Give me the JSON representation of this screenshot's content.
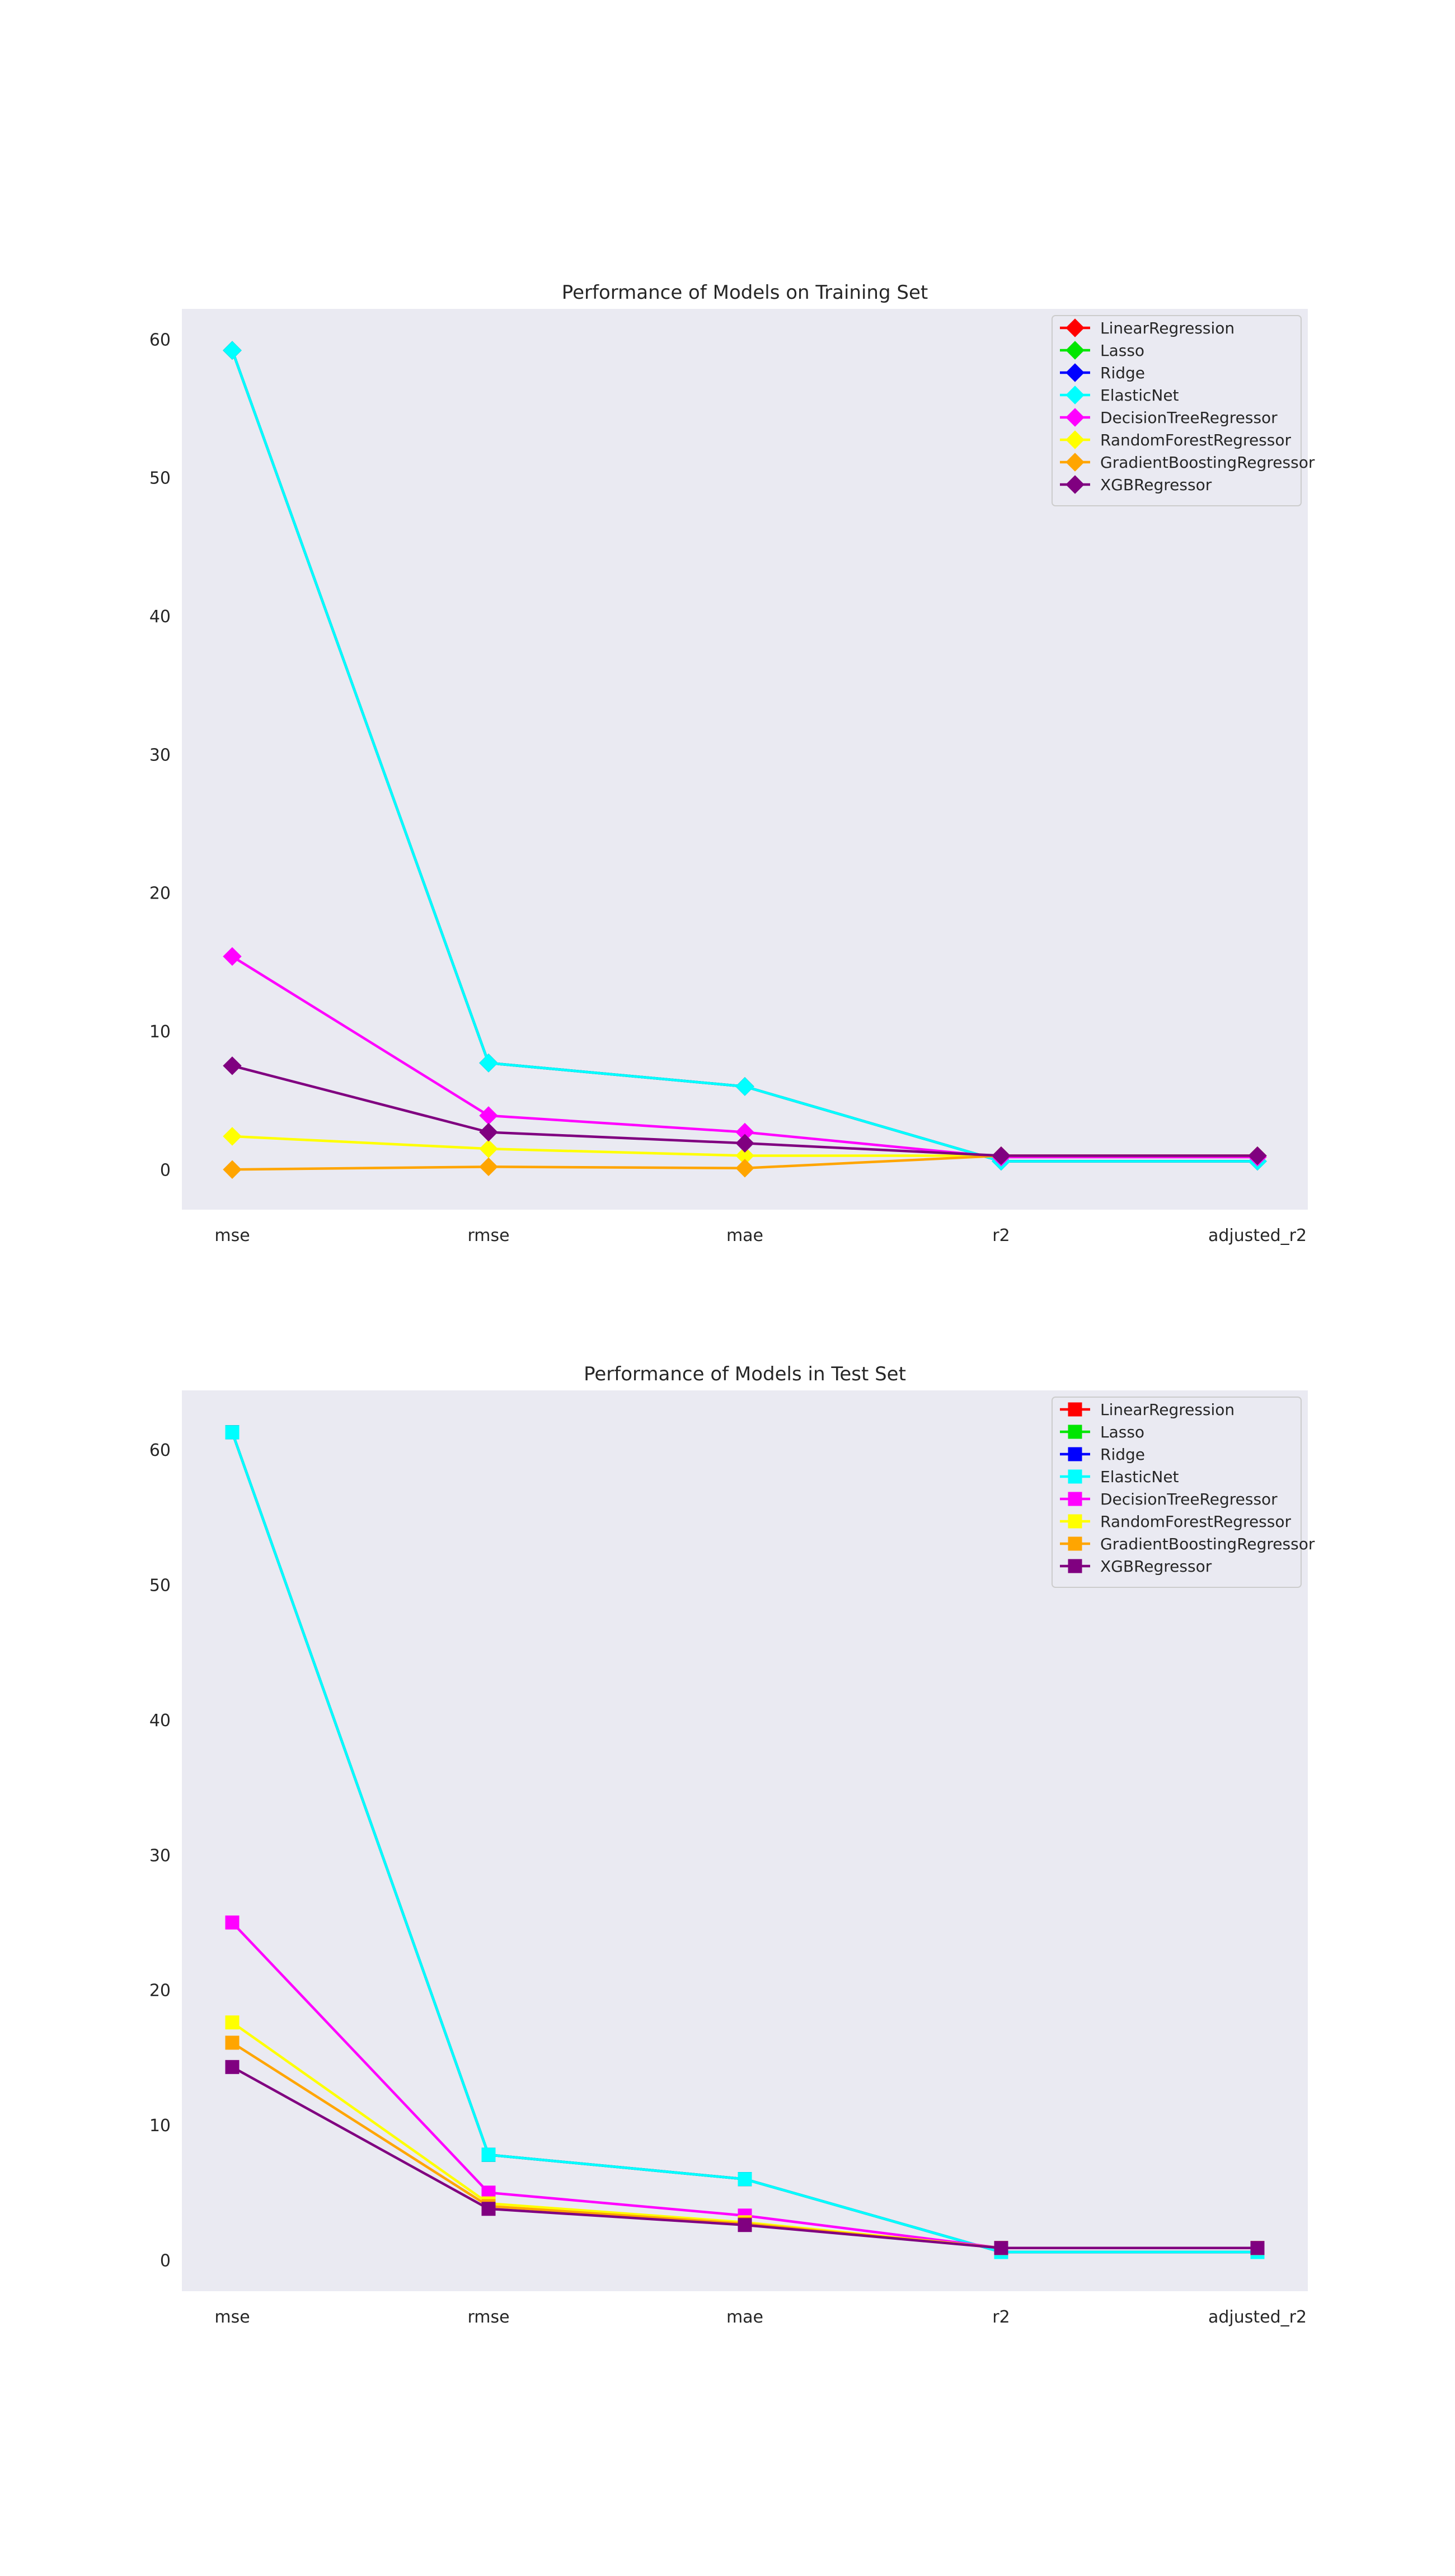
{
  "chart_data": [
    {
      "type": "line",
      "title": "Performance of Models on Training Set",
      "marker": "diamond",
      "categories": [
        "mse",
        "rmse",
        "mae",
        "r2",
        "adjusted_r2"
      ],
      "ylim": [
        -2.9,
        62.2
      ],
      "yticks": [
        0,
        10,
        20,
        30,
        40,
        50,
        60
      ],
      "grid": false,
      "legend_position": "top-right",
      "series": [
        {
          "name": "LinearRegression",
          "color": "#ff0000",
          "values": [
            59.2,
            7.7,
            6.0,
            0.6,
            0.6
          ]
        },
        {
          "name": "Lasso",
          "color": "#00e600",
          "values": [
            59.2,
            7.7,
            6.0,
            0.6,
            0.6
          ]
        },
        {
          "name": "Ridge",
          "color": "#0000ff",
          "values": [
            59.2,
            7.7,
            6.0,
            0.6,
            0.6
          ]
        },
        {
          "name": "ElasticNet",
          "color": "#00ffff",
          "values": [
            59.2,
            7.7,
            6.0,
            0.6,
            0.6
          ]
        },
        {
          "name": "DecisionTreeRegressor",
          "color": "#ff00ff",
          "values": [
            15.4,
            3.9,
            2.7,
            0.9,
            0.9
          ]
        },
        {
          "name": "RandomForestRegressor",
          "color": "#ffff00",
          "values": [
            2.4,
            1.5,
            1.0,
            1.0,
            1.0
          ]
        },
        {
          "name": "GradientBoostingRegressor",
          "color": "#ffa500",
          "values": [
            0.0,
            0.2,
            0.1,
            1.0,
            1.0
          ]
        },
        {
          "name": "XGBRegressor",
          "color": "#800080",
          "values": [
            7.5,
            2.7,
            1.9,
            1.0,
            1.0
          ]
        }
      ]
    },
    {
      "type": "line",
      "title": "Performance of Models in Test Set",
      "marker": "square",
      "categories": [
        "mse",
        "rmse",
        "mae",
        "r2",
        "adjusted_r2"
      ],
      "ylim": [
        -2.3,
        64.4
      ],
      "yticks": [
        0,
        10,
        20,
        30,
        40,
        50,
        60
      ],
      "grid": false,
      "legend_position": "top-right",
      "series": [
        {
          "name": "LinearRegression",
          "color": "#ff0000",
          "values": [
            61.3,
            7.8,
            6.0,
            0.6,
            0.6
          ]
        },
        {
          "name": "Lasso",
          "color": "#00e600",
          "values": [
            61.3,
            7.8,
            6.0,
            0.6,
            0.6
          ]
        },
        {
          "name": "Ridge",
          "color": "#0000ff",
          "values": [
            61.3,
            7.8,
            6.0,
            0.6,
            0.6
          ]
        },
        {
          "name": "ElasticNet",
          "color": "#00ffff",
          "values": [
            61.3,
            7.8,
            6.0,
            0.6,
            0.6
          ]
        },
        {
          "name": "DecisionTreeRegressor",
          "color": "#ff00ff",
          "values": [
            25.0,
            5.0,
            3.3,
            0.9,
            0.9
          ]
        },
        {
          "name": "RandomForestRegressor",
          "color": "#ffff00",
          "values": [
            17.6,
            4.2,
            2.8,
            0.9,
            0.9
          ]
        },
        {
          "name": "GradientBoostingRegressor",
          "color": "#ffa500",
          "values": [
            16.1,
            4.0,
            2.7,
            0.9,
            0.9
          ]
        },
        {
          "name": "XGBRegressor",
          "color": "#800080",
          "values": [
            14.3,
            3.8,
            2.6,
            0.9,
            0.9
          ]
        }
      ]
    }
  ]
}
